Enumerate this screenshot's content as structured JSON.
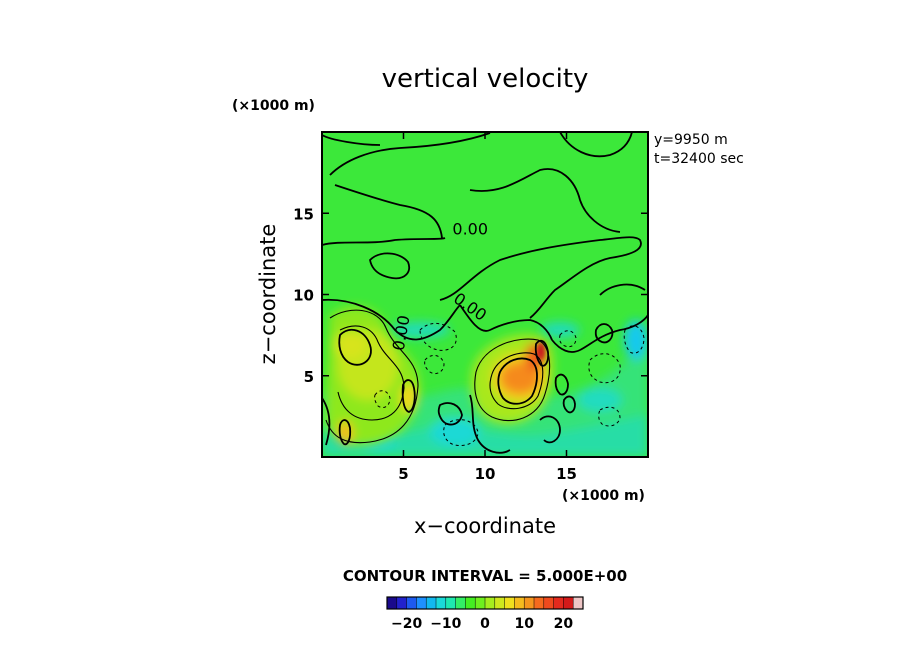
{
  "chart_data": {
    "type": "heatmap",
    "title": "vertical velocity",
    "xlabel": "x−coordinate",
    "ylabel": "z−coordinate",
    "x_unit": "(×1000 m)",
    "y_unit": "(×1000 m)",
    "xlim": [
      0,
      20
    ],
    "ylim": [
      0,
      20
    ],
    "x_ticks": [
      5,
      10,
      15
    ],
    "y_ticks": [
      5,
      10,
      15
    ],
    "x_tick_labels": [
      "5",
      "10",
      "15"
    ],
    "y_tick_labels": [
      "5",
      "10",
      "15"
    ],
    "info_lines": [
      "y=9950  m",
      "t=32400  sec"
    ],
    "contour_interval_text": "CONTOUR INTERVAL = 5.000E+00",
    "contour_interval": 5,
    "contour_labels": [
      {
        "text": "0.00",
        "x": 8.0,
        "z": 13.7
      },
      {
        "text": "0.00",
        "x": 8.0,
        "z": 9.6
      },
      {
        "text": "0.00",
        "x": 5.0,
        "z": 6.5
      }
    ],
    "colorbar": {
      "range": [
        -25,
        25
      ],
      "ticks": [
        -20,
        -10,
        0,
        10,
        20
      ],
      "tick_labels": [
        "−20",
        "−10",
        "0",
        "10",
        "20"
      ],
      "colors": [
        "#1a0a8c",
        "#2222cc",
        "#1e5aef",
        "#1e90ff",
        "#12b8ef",
        "#1ad9d9",
        "#1ee8b0",
        "#33ee66",
        "#44ee22",
        "#6ef01e",
        "#a6ee1e",
        "#cfe81e",
        "#f0e01e",
        "#f5bb1e",
        "#f5951e",
        "#f56a1e",
        "#ef4a1e",
        "#e42a1e",
        "#d41a1a",
        "#eec6c6"
      ]
    },
    "updraft_cells": [
      {
        "x": 2.5,
        "z": 6.0,
        "w": 12
      },
      {
        "x": 5.3,
        "z": 3.5,
        "w": 14
      },
      {
        "x": 1.3,
        "z": 1.5,
        "w": 13
      },
      {
        "x": 12.0,
        "z": 5.0,
        "w": 22
      },
      {
        "x": 13.6,
        "z": 6.6,
        "w": 26
      }
    ],
    "downdraft_cells": [
      {
        "x": 8.5,
        "z": 1.5,
        "w": -7
      },
      {
        "x": 19.0,
        "z": 7.0,
        "w": -9
      },
      {
        "x": 16.5,
        "z": 4.5,
        "w": -6
      }
    ]
  }
}
